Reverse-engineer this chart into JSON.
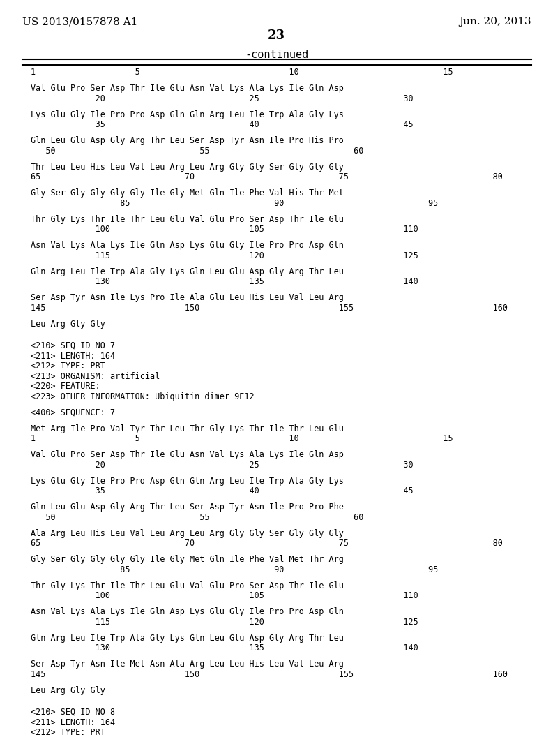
{
  "background_color": "#ffffff",
  "header_left": "US 2013/0157878 A1",
  "header_right": "Jun. 20, 2013",
  "page_number": "23",
  "continued_label": "-continued",
  "font_family": "DejaVu Sans Mono",
  "content": [
    {
      "type": "ruler_line"
    },
    {
      "type": "number_line",
      "text": "1                    5                              10                             15"
    },
    {
      "type": "blank"
    },
    {
      "type": "seq_line",
      "text": "Val Glu Pro Ser Asp Thr Ile Glu Asn Val Lys Ala Lys Ile Gln Asp"
    },
    {
      "type": "num_line",
      "text": "             20                             25                             30"
    },
    {
      "type": "blank"
    },
    {
      "type": "seq_line",
      "text": "Lys Glu Gly Ile Pro Pro Asp Gln Gln Arg Leu Ile Trp Ala Gly Lys"
    },
    {
      "type": "num_line",
      "text": "             35                             40                             45"
    },
    {
      "type": "blank"
    },
    {
      "type": "seq_line",
      "text": "Gln Leu Glu Asp Gly Arg Thr Leu Ser Asp Tyr Asn Ile Pro His Pro"
    },
    {
      "type": "num_line",
      "text": "   50                             55                             60"
    },
    {
      "type": "blank"
    },
    {
      "type": "seq_line",
      "text": "Thr Leu Leu His Leu Val Leu Arg Leu Arg Gly Gly Ser Gly Gly Gly"
    },
    {
      "type": "num_line",
      "text": "65                             70                             75                             80"
    },
    {
      "type": "blank"
    },
    {
      "type": "seq_line",
      "text": "Gly Ser Gly Gly Gly Gly Ile Gly Met Gln Ile Phe Val His Thr Met"
    },
    {
      "type": "num_line",
      "text": "                  85                             90                             95"
    },
    {
      "type": "blank"
    },
    {
      "type": "seq_line",
      "text": "Thr Gly Lys Thr Ile Thr Leu Glu Val Glu Pro Ser Asp Thr Ile Glu"
    },
    {
      "type": "num_line",
      "text": "             100                            105                            110"
    },
    {
      "type": "blank"
    },
    {
      "type": "seq_line",
      "text": "Asn Val Lys Ala Lys Ile Gln Asp Lys Glu Gly Ile Pro Pro Asp Gln"
    },
    {
      "type": "num_line",
      "text": "             115                            120                            125"
    },
    {
      "type": "blank"
    },
    {
      "type": "seq_line",
      "text": "Gln Arg Leu Ile Trp Ala Gly Lys Gln Leu Glu Asp Gly Arg Thr Leu"
    },
    {
      "type": "num_line",
      "text": "             130                            135                            140"
    },
    {
      "type": "blank"
    },
    {
      "type": "seq_line",
      "text": "Ser Asp Tyr Asn Ile Lys Pro Ile Ala Glu Leu His Leu Val Leu Arg"
    },
    {
      "type": "num_line",
      "text": "145                            150                            155                            160"
    },
    {
      "type": "blank"
    },
    {
      "type": "seq_line",
      "text": "Leu Arg Gly Gly"
    },
    {
      "type": "blank"
    },
    {
      "type": "blank"
    },
    {
      "type": "meta",
      "text": "<210> SEQ ID NO 7"
    },
    {
      "type": "meta",
      "text": "<211> LENGTH: 164"
    },
    {
      "type": "meta",
      "text": "<212> TYPE: PRT"
    },
    {
      "type": "meta",
      "text": "<213> ORGANISM: artificial"
    },
    {
      "type": "meta",
      "text": "<220> FEATURE:"
    },
    {
      "type": "meta",
      "text": "<223> OTHER INFORMATION: Ubiquitin dimer 9E12"
    },
    {
      "type": "blank"
    },
    {
      "type": "meta",
      "text": "<400> SEQUENCE: 7"
    },
    {
      "type": "blank"
    },
    {
      "type": "seq_line",
      "text": "Met Arg Ile Pro Val Tyr Thr Leu Thr Gly Lys Thr Ile Thr Leu Glu"
    },
    {
      "type": "num_line",
      "text": "1                    5                              10                             15"
    },
    {
      "type": "blank"
    },
    {
      "type": "seq_line",
      "text": "Val Glu Pro Ser Asp Thr Ile Glu Asn Val Lys Ala Lys Ile Gln Asp"
    },
    {
      "type": "num_line",
      "text": "             20                             25                             30"
    },
    {
      "type": "blank"
    },
    {
      "type": "seq_line",
      "text": "Lys Glu Gly Ile Pro Pro Asp Gln Gln Arg Leu Ile Trp Ala Gly Lys"
    },
    {
      "type": "num_line",
      "text": "             35                             40                             45"
    },
    {
      "type": "blank"
    },
    {
      "type": "seq_line",
      "text": "Gln Leu Glu Asp Gly Arg Thr Leu Ser Asp Tyr Asn Ile Pro Pro Phe"
    },
    {
      "type": "num_line",
      "text": "   50                             55                             60"
    },
    {
      "type": "blank"
    },
    {
      "type": "seq_line",
      "text": "Ala Arg Leu His Leu Val Leu Arg Leu Arg Gly Gly Ser Gly Gly Gly"
    },
    {
      "type": "num_line",
      "text": "65                             70                             75                             80"
    },
    {
      "type": "blank"
    },
    {
      "type": "seq_line",
      "text": "Gly Ser Gly Gly Gly Gly Ile Gly Met Gln Ile Phe Val Met Thr Arg"
    },
    {
      "type": "num_line",
      "text": "                  85                             90                             95"
    },
    {
      "type": "blank"
    },
    {
      "type": "seq_line",
      "text": "Thr Gly Lys Thr Ile Thr Leu Glu Val Glu Pro Ser Asp Thr Ile Glu"
    },
    {
      "type": "num_line",
      "text": "             100                            105                            110"
    },
    {
      "type": "blank"
    },
    {
      "type": "seq_line",
      "text": "Asn Val Lys Ala Lys Ile Gln Asp Lys Glu Gly Ile Pro Pro Asp Gln"
    },
    {
      "type": "num_line",
      "text": "             115                            120                            125"
    },
    {
      "type": "blank"
    },
    {
      "type": "seq_line",
      "text": "Gln Arg Leu Ile Trp Ala Gly Lys Gln Leu Glu Asp Gly Arg Thr Leu"
    },
    {
      "type": "num_line",
      "text": "             130                            135                            140"
    },
    {
      "type": "blank"
    },
    {
      "type": "seq_line",
      "text": "Ser Asp Tyr Asn Ile Met Asn Ala Arg Leu Leu His Leu Val Leu Arg"
    },
    {
      "type": "num_line",
      "text": "145                            150                            155                            160"
    },
    {
      "type": "blank"
    },
    {
      "type": "seq_line",
      "text": "Leu Arg Gly Gly"
    },
    {
      "type": "blank"
    },
    {
      "type": "blank"
    },
    {
      "type": "meta",
      "text": "<210> SEQ ID NO 8"
    },
    {
      "type": "meta",
      "text": "<211> LENGTH: 164"
    },
    {
      "type": "meta",
      "text": "<212> TYPE: PRT"
    }
  ]
}
